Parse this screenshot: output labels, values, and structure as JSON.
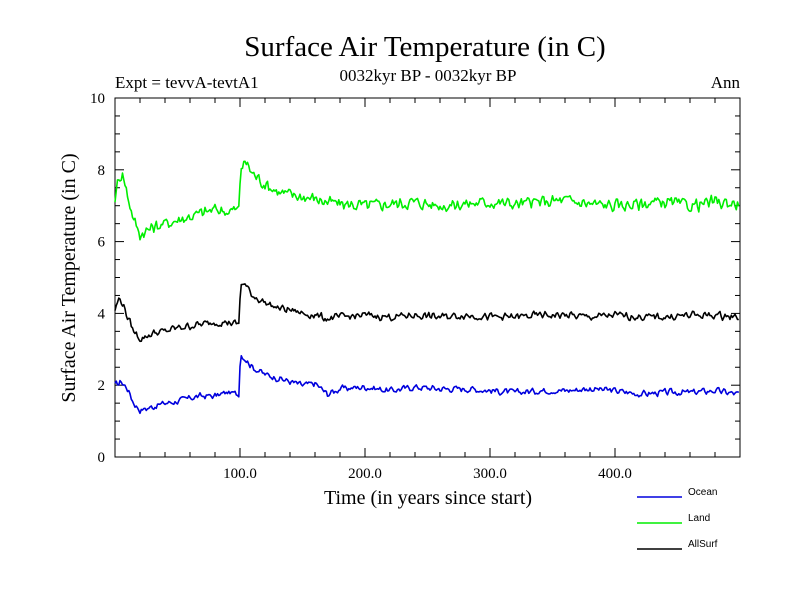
{
  "chart_data": {
    "type": "line",
    "title": "Surface Air Temperature (in C)",
    "subtitle_left": "Expt = tevvA-tevtA1",
    "subtitle_center": "0032kyr BP - 0032kyr BP",
    "subtitle_right": "Ann",
    "xlabel": "Time (in years since start)",
    "ylabel": "Surface Air Temperature (in C)",
    "xlim": [
      0,
      500
    ],
    "ylim": [
      0,
      10
    ],
    "x_ticks": [
      100,
      200,
      300,
      400
    ],
    "x_tick_labels": [
      "100.0",
      "200.0",
      "300.0",
      "400.0"
    ],
    "y_ticks": [
      0,
      2,
      4,
      6,
      8,
      10
    ],
    "y_tick_labels": [
      "0",
      "2",
      "4",
      "6",
      "8",
      "10"
    ],
    "grid": false,
    "legend_position": "bottom-right, below plot",
    "series": [
      {
        "name": "Ocean",
        "color": "#0000dd",
        "x": [
          0,
          5,
          10,
          15,
          20,
          25,
          30,
          40,
          50,
          60,
          70,
          80,
          90,
          99,
          100,
          101,
          105,
          110,
          120,
          130,
          140,
          150,
          160,
          170,
          180,
          200,
          220,
          240,
          260,
          280,
          300,
          320,
          340,
          360,
          380,
          400,
          420,
          440,
          460,
          480,
          499
        ],
        "values": [
          2.0,
          2.1,
          1.9,
          1.5,
          1.3,
          1.35,
          1.4,
          1.5,
          1.55,
          1.65,
          1.7,
          1.7,
          1.8,
          1.75,
          2.6,
          2.85,
          2.7,
          2.5,
          2.3,
          2.2,
          2.1,
          2.0,
          2.05,
          1.75,
          1.9,
          1.95,
          1.85,
          1.95,
          1.9,
          1.9,
          1.85,
          1.8,
          1.85,
          1.85,
          1.9,
          1.85,
          1.75,
          1.8,
          1.8,
          1.85,
          1.75
        ]
      },
      {
        "name": "Land",
        "color": "#00ee00",
        "x": [
          0,
          3,
          6,
          10,
          15,
          20,
          25,
          30,
          40,
          50,
          60,
          70,
          80,
          90,
          99,
          100,
          101,
          105,
          110,
          120,
          130,
          140,
          150,
          160,
          170,
          180,
          200,
          220,
          240,
          260,
          280,
          300,
          320,
          340,
          360,
          380,
          400,
          420,
          440,
          460,
          480,
          499
        ],
        "values": [
          7.2,
          7.8,
          7.9,
          7.3,
          6.6,
          6.2,
          6.3,
          6.4,
          6.5,
          6.6,
          6.7,
          6.8,
          6.9,
          6.85,
          6.9,
          7.6,
          8.1,
          8.2,
          7.9,
          7.6,
          7.4,
          7.3,
          7.25,
          7.2,
          7.1,
          7.05,
          7.0,
          7.05,
          7.1,
          7.0,
          7.05,
          7.1,
          7.05,
          7.1,
          7.15,
          7.05,
          7.0,
          7.05,
          7.1,
          7.0,
          7.1,
          7.05
        ]
      },
      {
        "name": "AllSurf",
        "color": "#000000",
        "x": [
          0,
          3,
          6,
          10,
          15,
          20,
          25,
          30,
          40,
          50,
          60,
          70,
          80,
          90,
          99,
          100,
          101,
          105,
          110,
          120,
          130,
          140,
          150,
          160,
          170,
          180,
          200,
          220,
          240,
          260,
          280,
          300,
          320,
          340,
          360,
          380,
          400,
          420,
          440,
          460,
          480,
          499
        ],
        "values": [
          4.1,
          4.4,
          4.3,
          3.9,
          3.5,
          3.3,
          3.35,
          3.45,
          3.5,
          3.6,
          3.65,
          3.7,
          3.75,
          3.75,
          3.7,
          4.4,
          4.85,
          4.75,
          4.5,
          4.3,
          4.15,
          4.1,
          4.0,
          3.95,
          3.85,
          3.9,
          3.95,
          3.9,
          3.95,
          3.9,
          3.95,
          3.9,
          3.9,
          3.95,
          3.95,
          3.9,
          3.95,
          3.9,
          3.9,
          3.95,
          3.95,
          3.9
        ]
      }
    ]
  }
}
